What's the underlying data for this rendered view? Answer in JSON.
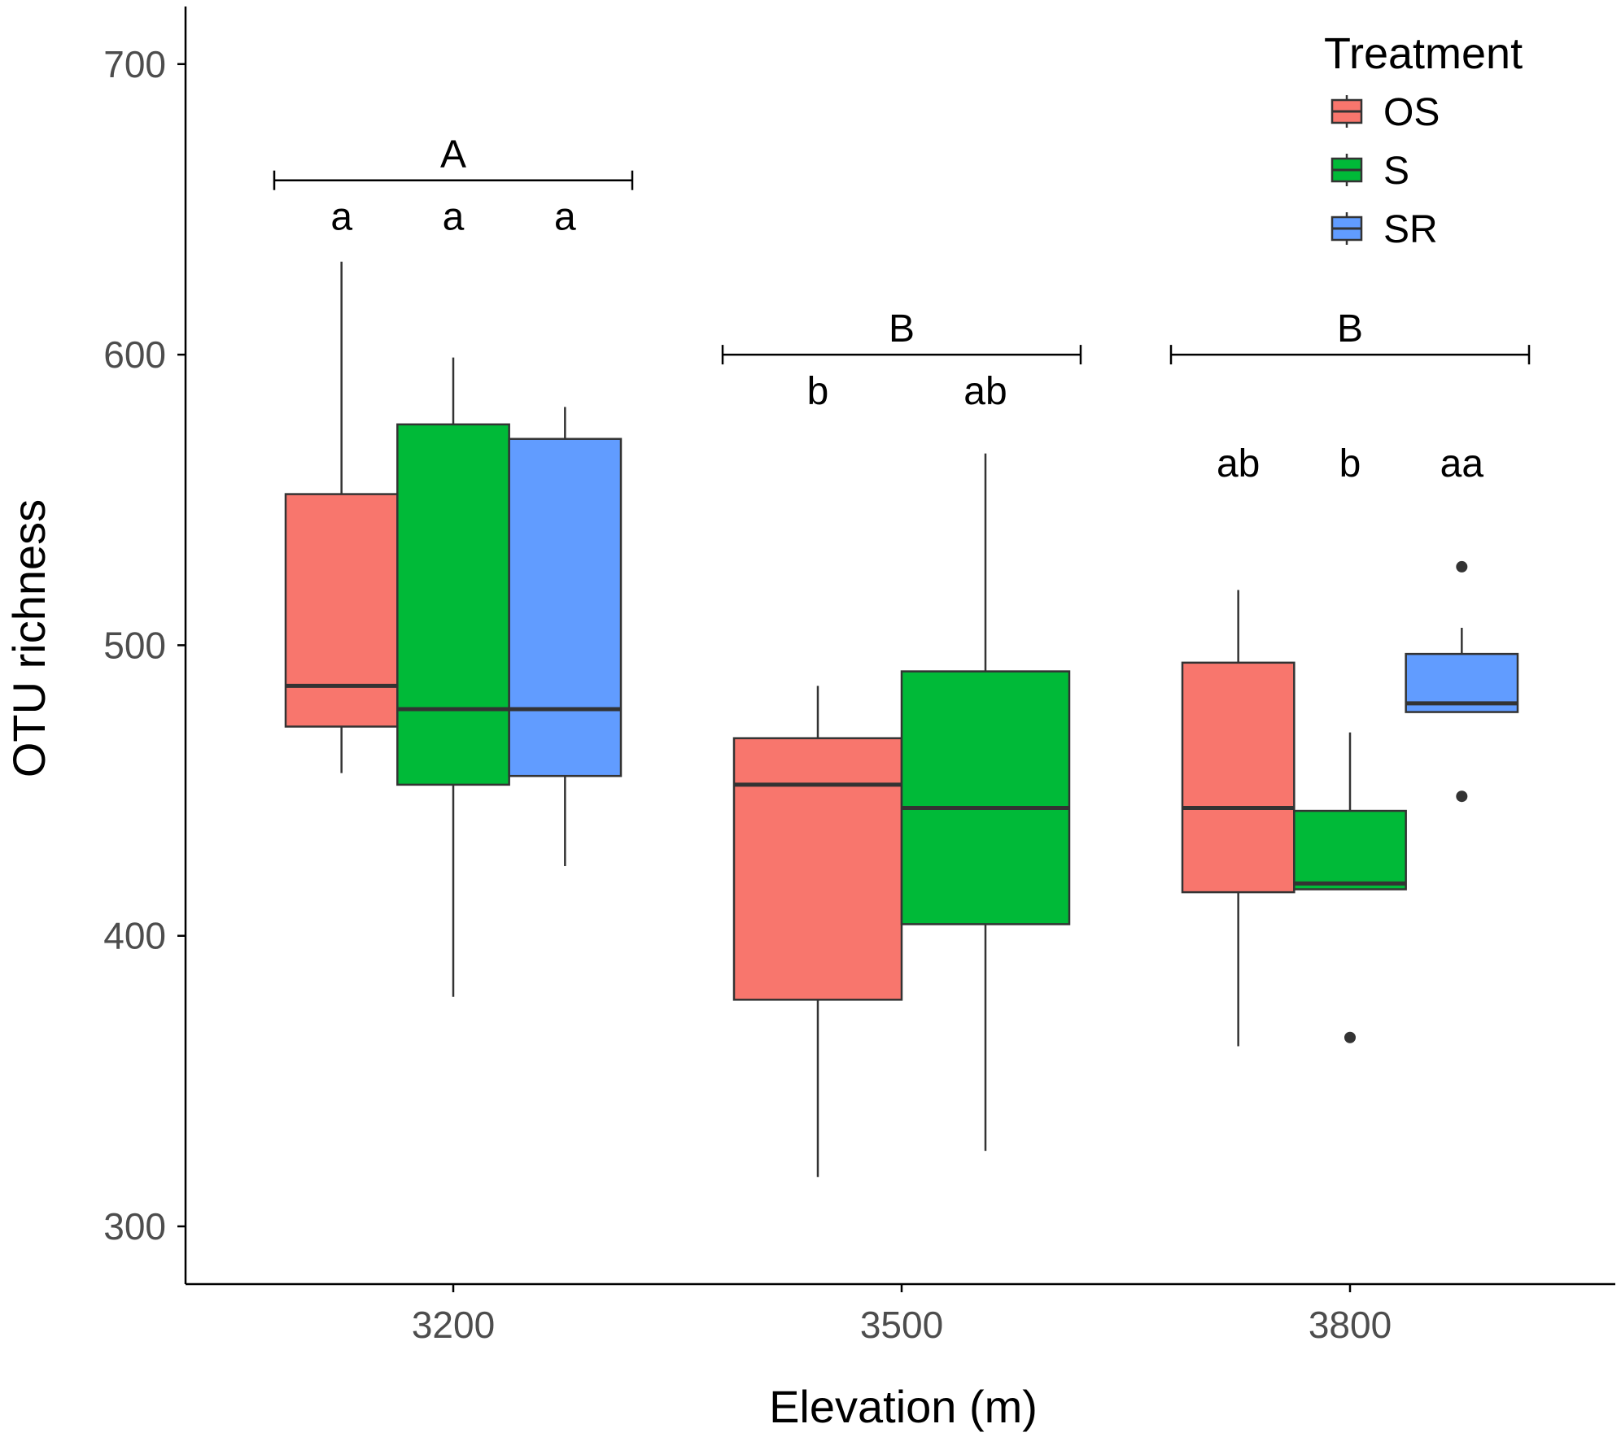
{
  "chart_data": {
    "type": "box",
    "xlabel": "Elevation (m)",
    "ylabel": "OTU richness",
    "categories": [
      "3200",
      "3500",
      "3800"
    ],
    "ylim": [
      278,
      718
    ],
    "yticks": [
      300,
      400,
      500,
      600,
      700
    ],
    "grid": false,
    "legend": {
      "title": "Treatment",
      "placement": "top-right",
      "entries": [
        {
          "name": "OS",
          "color": "#F8766D"
        },
        {
          "name": "S",
          "color": "#00BA38"
        },
        {
          "name": "SR",
          "color": "#619CFF"
        }
      ]
    },
    "boxes": [
      {
        "category": "3200",
        "treatment": "OS",
        "slot": 0,
        "slots": 3,
        "lower_whisker": 456,
        "q1": 472,
        "median": 486,
        "q3": 552,
        "upper_whisker": 632,
        "outliers": []
      },
      {
        "category": "3200",
        "treatment": "S",
        "slot": 1,
        "slots": 3,
        "lower_whisker": 379,
        "q1": 452,
        "median": 478,
        "q3": 576,
        "upper_whisker": 599,
        "outliers": []
      },
      {
        "category": "3200",
        "treatment": "SR",
        "slot": 2,
        "slots": 3,
        "lower_whisker": 424,
        "q1": 455,
        "median": 478,
        "q3": 571,
        "upper_whisker": 582,
        "outliers": []
      },
      {
        "category": "3500",
        "treatment": "OS",
        "slot": 0,
        "slots": 2,
        "lower_whisker": 317,
        "q1": 378,
        "median": 452,
        "q3": 468,
        "upper_whisker": 486,
        "outliers": []
      },
      {
        "category": "3500",
        "treatment": "S",
        "slot": 1,
        "slots": 2,
        "lower_whisker": 326,
        "q1": 404,
        "median": 444,
        "q3": 491,
        "upper_whisker": 566,
        "outliers": []
      },
      {
        "category": "3800",
        "treatment": "OS",
        "slot": 0,
        "slots": 3,
        "lower_whisker": 362,
        "q1": 415,
        "median": 444,
        "q3": 494,
        "upper_whisker": 519,
        "outliers": []
      },
      {
        "category": "3800",
        "treatment": "S",
        "slot": 1,
        "slots": 3,
        "lower_whisker": 416,
        "q1": 416,
        "median": 418,
        "q3": 443,
        "upper_whisker": 470,
        "outliers": [
          365
        ]
      },
      {
        "category": "3800",
        "treatment": "SR",
        "slot": 2,
        "slots": 3,
        "lower_whisker": 477,
        "q1": 477,
        "median": 480,
        "q3": 497,
        "upper_whisker": 506,
        "outliers": [
          527,
          448
        ]
      }
    ],
    "group_letters": [
      {
        "category": "3200",
        "label": "A",
        "y": 660
      },
      {
        "category": "3500",
        "label": "B",
        "y": 600
      },
      {
        "category": "3800",
        "label": "B",
        "y": 600
      }
    ],
    "box_letters": [
      {
        "category": "3200",
        "slot": 0,
        "slots": 3,
        "label": "a",
        "y": 643
      },
      {
        "category": "3200",
        "slot": 1,
        "slots": 3,
        "label": "a",
        "y": 643
      },
      {
        "category": "3200",
        "slot": 2,
        "slots": 3,
        "label": "a",
        "y": 643
      },
      {
        "category": "3500",
        "slot": 0,
        "slots": 2,
        "label": "b",
        "y": 583
      },
      {
        "category": "3500",
        "slot": 1,
        "slots": 2,
        "label": "ab",
        "y": 583
      },
      {
        "category": "3800",
        "slot": 0,
        "slots": 3,
        "label": "ab",
        "y": 558
      },
      {
        "category": "3800",
        "slot": 1,
        "slots": 3,
        "label": "b",
        "y": 558
      },
      {
        "category": "3800",
        "slot": 2,
        "slots": 3,
        "label": "aa",
        "y": 558
      }
    ]
  }
}
